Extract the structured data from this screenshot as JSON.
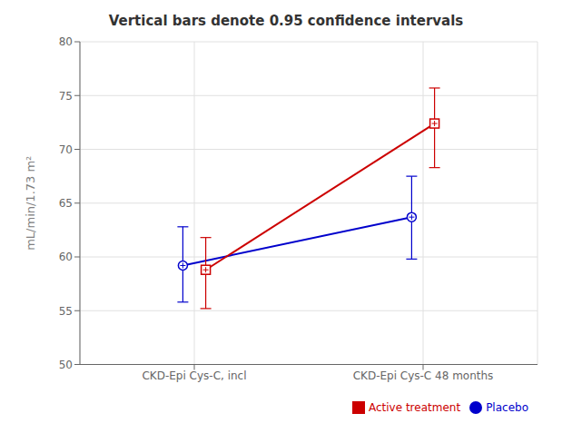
{
  "chart_data": {
    "type": "line",
    "title": "Vertical bars denote 0.95 confidence intervals",
    "y_label": "mL/min/1.73 m²",
    "categories": [
      "CKD-Epi Cys-C, incl",
      "CKD-Epi Cys-C 48 months"
    ],
    "series": [
      {
        "name": "Placebo",
        "color": "#0000cc",
        "marker": "circle",
        "values": [
          59.2,
          63.7
        ],
        "ci_low": [
          55.8,
          59.8
        ],
        "ci_high": [
          62.8,
          67.5
        ]
      },
      {
        "name": "Active treatment",
        "color": "#cc0000",
        "marker": "square",
        "values": [
          58.8,
          72.4
        ],
        "ci_low": [
          55.2,
          68.3
        ],
        "ci_high": [
          61.8,
          75.7
        ]
      }
    ],
    "ylim": [
      50,
      80
    ],
    "yticks": [
      50,
      55,
      60,
      65,
      70,
      75,
      80
    ],
    "grid": true,
    "legend": "lower right"
  }
}
